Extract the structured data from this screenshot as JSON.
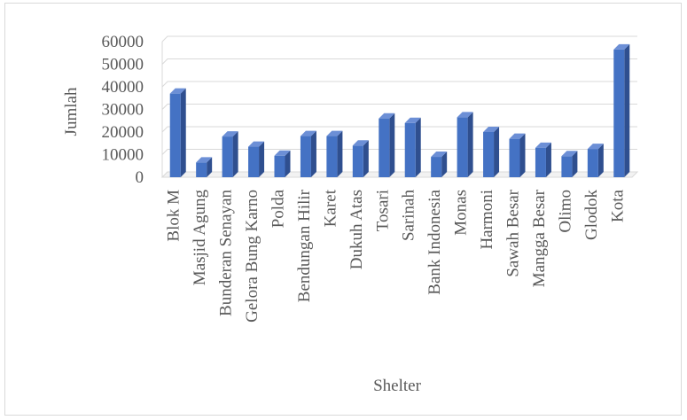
{
  "chart_data": {
    "type": "bar",
    "title": "",
    "xlabel": "Shelter",
    "ylabel": "Jumlah",
    "ylim": [
      0,
      60000
    ],
    "yticks": [
      0,
      10000,
      20000,
      30000,
      40000,
      50000,
      60000
    ],
    "grid": true,
    "legend": "none",
    "bar_color": "#4472c4",
    "categories": [
      "Blok M",
      "Masjid Agung",
      "Bunderan Senayan",
      "Gelora Bung Karno",
      "Polda",
      "Bendungan Hilir",
      "Karet",
      "Dukuh Atas",
      "Tosari",
      "Sarinah",
      "Bank Indonesia",
      "Monas",
      "Harmoni",
      "Sawah Besar",
      "Mangga Besar",
      "Olimo",
      "Glodok",
      "Kota"
    ],
    "series": [
      {
        "values": [
          37000,
          6500,
          18000,
          13500,
          9500,
          18200,
          18200,
          14000,
          26000,
          24000,
          9000,
          26500,
          20000,
          17000,
          13000,
          9300,
          12500,
          56500
        ]
      }
    ]
  }
}
